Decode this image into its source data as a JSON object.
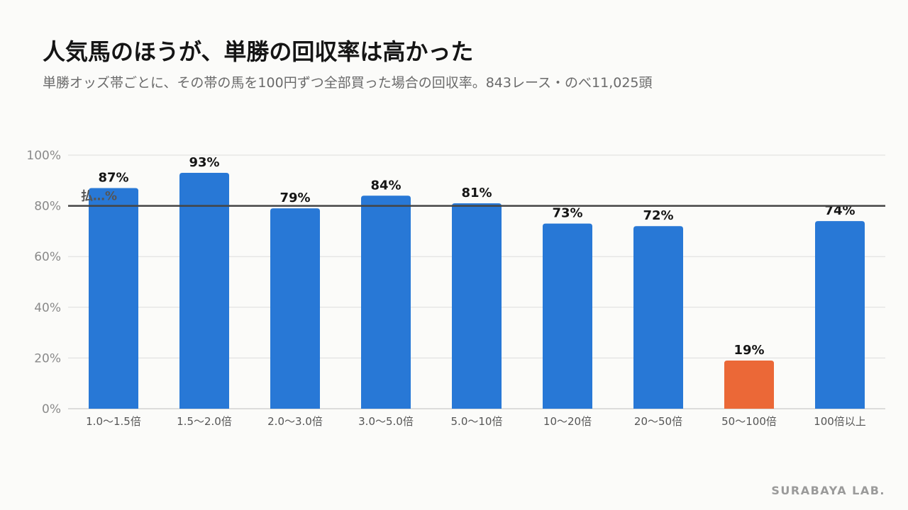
{
  "header": {
    "title": "人気馬のほうが、単勝の回収率は高かった",
    "subtitle": "単勝オッズ帯ごとに、その帯の馬を100円ずつ全部買った場合の回収率。843レース・のべ11,025頭"
  },
  "chart_data": {
    "type": "bar",
    "categories": [
      "1.0〜1.5倍",
      "1.5〜2.0倍",
      "2.0〜3.0倍",
      "3.0〜5.0倍",
      "5.0〜10倍",
      "10〜20倍",
      "20〜50倍",
      "50〜100倍",
      "100倍以上"
    ],
    "values": [
      87,
      93,
      79,
      84,
      81,
      73,
      72,
      19,
      74
    ],
    "value_labels": [
      "87%",
      "93%",
      "79%",
      "84%",
      "81%",
      "73%",
      "72%",
      "19%",
      "74%"
    ],
    "ylim": [
      0,
      100
    ],
    "yticks": [
      0,
      20,
      40,
      60,
      80,
      100
    ],
    "ytick_labels": [
      "0%",
      "20%",
      "40%",
      "60%",
      "80%",
      "100%"
    ],
    "grid": true,
    "reference_line": {
      "value": 80,
      "label": "払…%"
    },
    "colors": {
      "bar": "#2878d6",
      "highlight": "#eb6837",
      "reference": "#444444",
      "grid": "#dcdcdc"
    },
    "highlight_index": 7
  },
  "brand": "SURABAYA LAB."
}
